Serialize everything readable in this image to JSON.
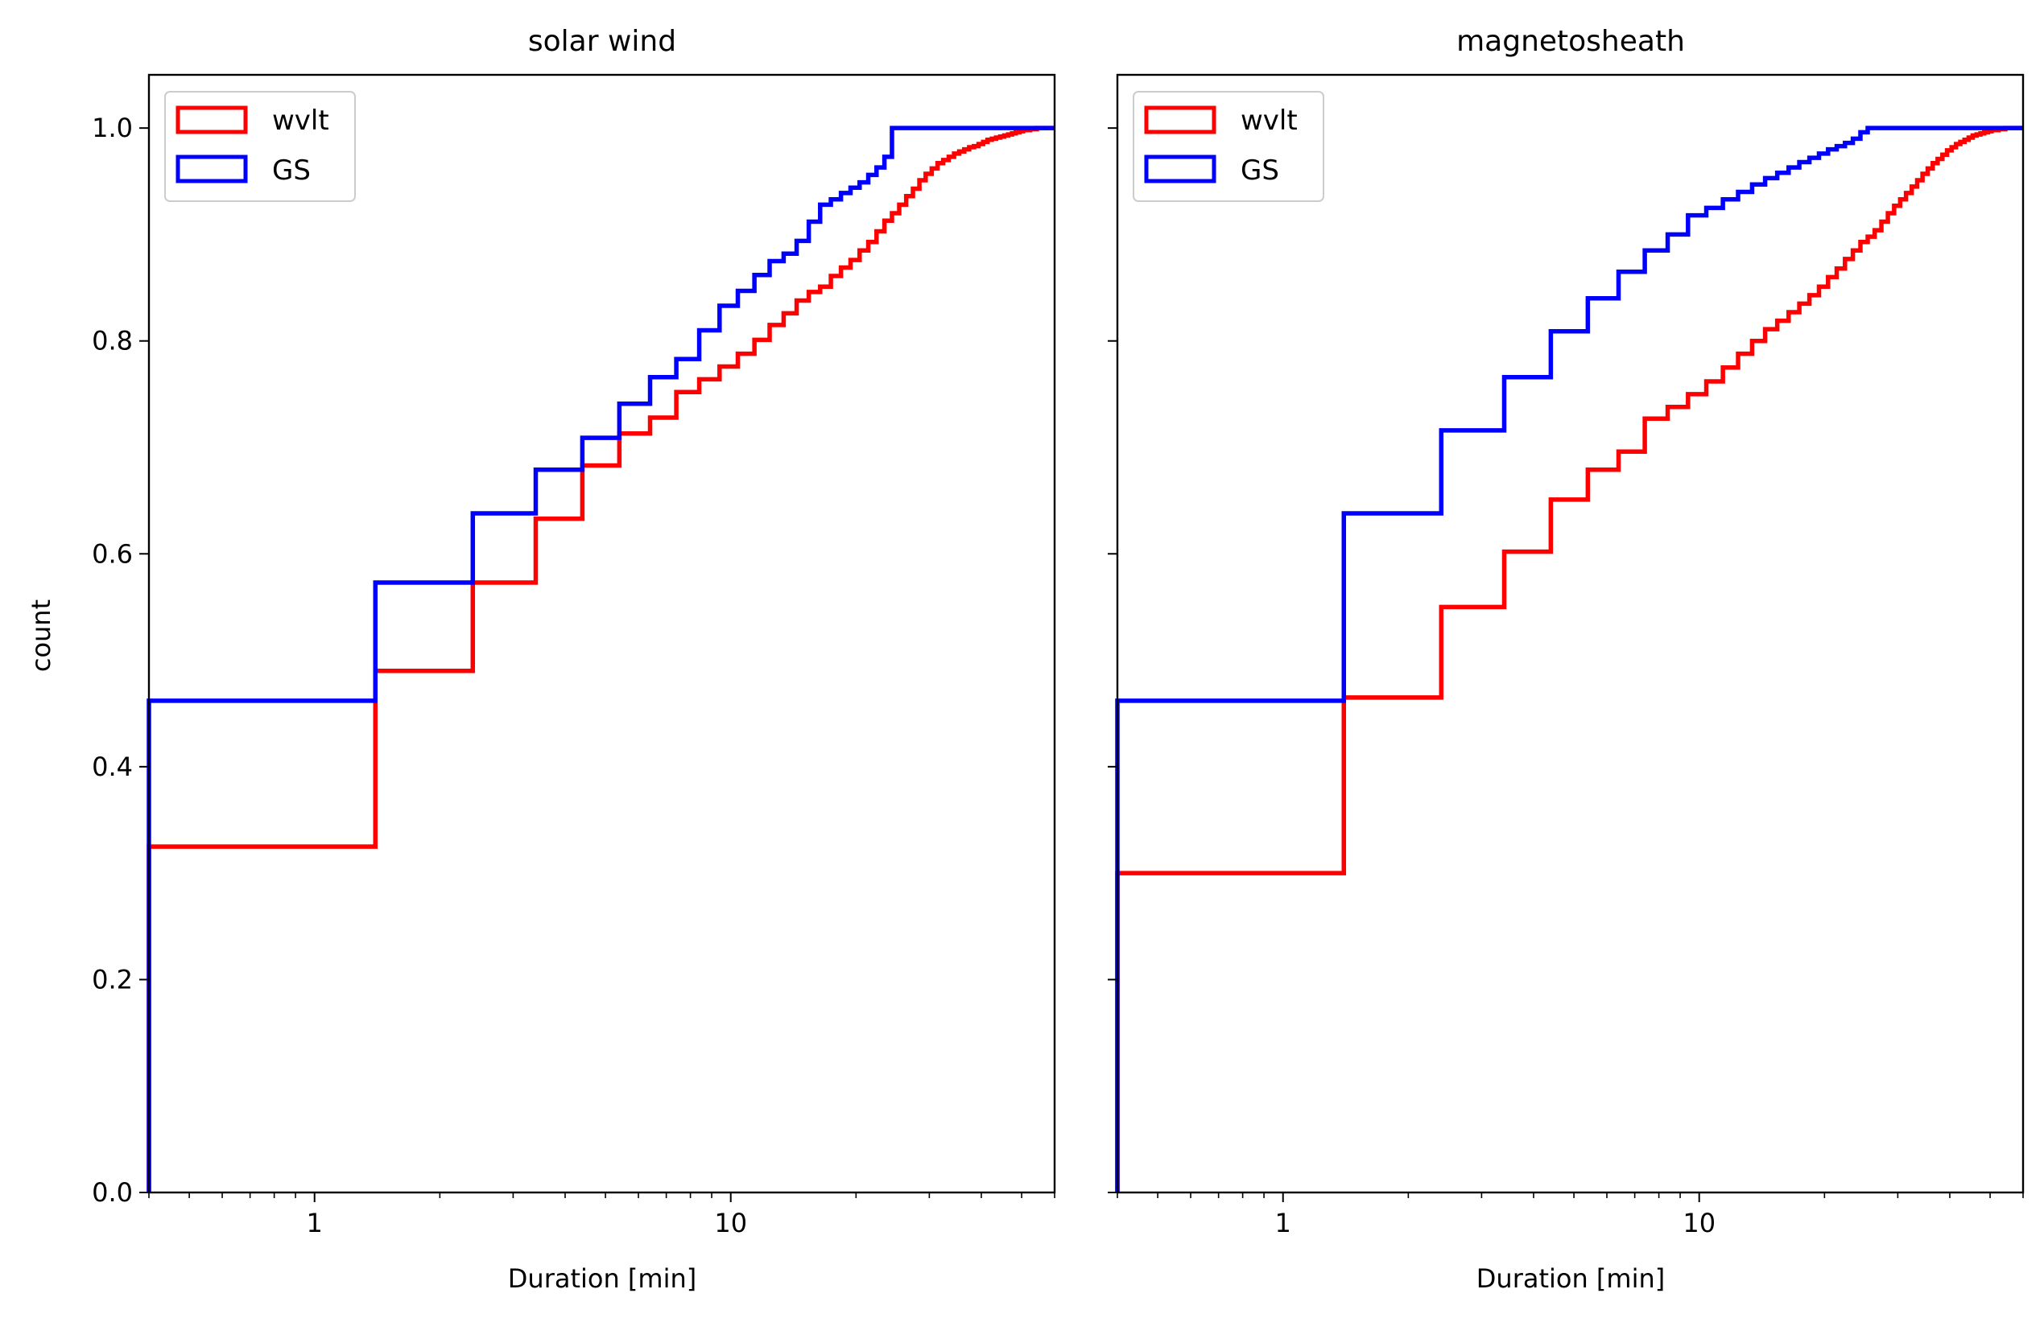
{
  "chart_data": [
    {
      "type": "step",
      "title": "solar wind",
      "xlabel": "Duration [min]",
      "ylabel": "count",
      "xscale": "log",
      "xlim": [
        0.4,
        60
      ],
      "ylim": [
        0,
        1.05
      ],
      "xticks": [
        {
          "v": 1,
          "label": "1"
        },
        {
          "v": 10,
          "label": "10"
        }
      ],
      "yticks": [
        {
          "v": 0,
          "label": "0.0"
        },
        {
          "v": 0.2,
          "label": "0.2"
        },
        {
          "v": 0.4,
          "label": "0.4"
        },
        {
          "v": 0.6,
          "label": "0.6"
        },
        {
          "v": 0.8,
          "label": "0.8"
        },
        {
          "v": 1.0,
          "label": "1.0"
        }
      ],
      "grid": false,
      "legend": "upper-left",
      "series": [
        {
          "name": "wvlt",
          "color": "#ff0000",
          "x": [
            0.4,
            1.4,
            2.4,
            3.4,
            4.4,
            5.4,
            6.4,
            7.4,
            8.4,
            9.4,
            10.4,
            11.4,
            12.4,
            13.4,
            14.4,
            15.4,
            16.4,
            17.4,
            18.4,
            19.4,
            20.4,
            21.4,
            22.4,
            23.4,
            24.4,
            25.4,
            26.4,
            27.4,
            28.4,
            29.4,
            30.4,
            31.4,
            32.4,
            33.4,
            34.4,
            35.4,
            36.4,
            37.4,
            38.4,
            39.4,
            40.4,
            41.4,
            42.4,
            43.4,
            44.4,
            45.4,
            46.4,
            47.4,
            48.4,
            49.4,
            50.4,
            51.4,
            52.4,
            53.4,
            54.4,
            55.4,
            56.4,
            57.4,
            58.4,
            59.4,
            60
          ],
          "y": [
            0.325,
            0.49,
            0.573,
            0.633,
            0.683,
            0.713,
            0.728,
            0.752,
            0.764,
            0.776,
            0.788,
            0.801,
            0.815,
            0.826,
            0.838,
            0.846,
            0.851,
            0.861,
            0.869,
            0.876,
            0.885,
            0.893,
            0.903,
            0.913,
            0.92,
            0.928,
            0.936,
            0.943,
            0.951,
            0.957,
            0.962,
            0.967,
            0.97,
            0.973,
            0.976,
            0.978,
            0.98,
            0.982,
            0.983,
            0.985,
            0.987,
            0.989,
            0.99,
            0.991,
            0.992,
            0.993,
            0.994,
            0.995,
            0.996,
            0.997,
            0.998,
            0.998,
            0.999,
            0.999,
            1.0,
            1.0,
            1.0,
            1.0,
            1.0,
            1.0,
            1.0
          ]
        },
        {
          "name": "GS",
          "color": "#0000ff",
          "x": [
            0.4,
            1.4,
            2.4,
            3.4,
            4.4,
            5.4,
            6.4,
            7.4,
            8.4,
            9.4,
            10.4,
            11.4,
            12.4,
            13.4,
            14.4,
            15.4,
            16.4,
            17.4,
            18.4,
            19.4,
            20.4,
            21.4,
            22.4,
            23.4,
            24.4,
            25.4,
            60
          ],
          "y": [
            0.462,
            0.573,
            0.638,
            0.679,
            0.709,
            0.741,
            0.766,
            0.783,
            0.81,
            0.833,
            0.847,
            0.862,
            0.875,
            0.882,
            0.894,
            0.912,
            0.928,
            0.933,
            0.939,
            0.944,
            0.949,
            0.956,
            0.963,
            0.973,
            1.0,
            1.0,
            1.0
          ]
        }
      ]
    },
    {
      "type": "step",
      "title": "magnetosheath",
      "xlabel": "Duration [min]",
      "ylabel": "",
      "xscale": "log",
      "xlim": [
        0.4,
        60
      ],
      "ylim": [
        0,
        1.05
      ],
      "xticks": [
        {
          "v": 1,
          "label": "1"
        },
        {
          "v": 10,
          "label": "10"
        }
      ],
      "yticks": [
        {
          "v": 0,
          "label": ""
        },
        {
          "v": 0.2,
          "label": ""
        },
        {
          "v": 0.4,
          "label": ""
        },
        {
          "v": 0.6,
          "label": ""
        },
        {
          "v": 0.8,
          "label": ""
        },
        {
          "v": 1.0,
          "label": ""
        }
      ],
      "grid": false,
      "legend": "upper-left",
      "series": [
        {
          "name": "wvlt",
          "color": "#ff0000",
          "x": [
            0.4,
            1.4,
            2.4,
            3.4,
            4.4,
            5.4,
            6.4,
            7.4,
            8.4,
            9.4,
            10.4,
            11.4,
            12.4,
            13.4,
            14.4,
            15.4,
            16.4,
            17.4,
            18.4,
            19.4,
            20.4,
            21.4,
            22.4,
            23.4,
            24.4,
            25.4,
            26.4,
            27.4,
            28.4,
            29.4,
            30.4,
            31.4,
            32.4,
            33.4,
            34.4,
            35.4,
            36.4,
            37.4,
            38.4,
            39.4,
            40.4,
            41.4,
            42.4,
            43.4,
            44.4,
            45.4,
            46.4,
            47.4,
            48.4,
            49.4,
            50.4,
            51.4,
            52.4,
            53.4,
            54.4,
            55.4,
            56.4,
            57.4,
            58.4,
            59.4,
            60
          ],
          "y": [
            0.3,
            0.465,
            0.55,
            0.602,
            0.651,
            0.679,
            0.696,
            0.727,
            0.738,
            0.75,
            0.762,
            0.775,
            0.788,
            0.8,
            0.811,
            0.819,
            0.827,
            0.835,
            0.843,
            0.851,
            0.86,
            0.868,
            0.877,
            0.885,
            0.893,
            0.898,
            0.904,
            0.912,
            0.92,
            0.927,
            0.933,
            0.939,
            0.945,
            0.951,
            0.957,
            0.962,
            0.967,
            0.971,
            0.975,
            0.979,
            0.982,
            0.985,
            0.987,
            0.989,
            0.991,
            0.993,
            0.994,
            0.995,
            0.996,
            0.997,
            0.998,
            0.998,
            0.999,
            0.999,
            1.0,
            1.0,
            1.0,
            1.0,
            1.0,
            1.0,
            1.0
          ]
        },
        {
          "name": "GS",
          "color": "#0000ff",
          "x": [
            0.4,
            1.4,
            2.4,
            3.4,
            4.4,
            5.4,
            6.4,
            7.4,
            8.4,
            9.4,
            10.4,
            11.4,
            12.4,
            13.4,
            14.4,
            15.4,
            16.4,
            17.4,
            18.4,
            19.4,
            20.4,
            21.4,
            22.4,
            23.4,
            24.4,
            25.4,
            60
          ],
          "y": [
            0.462,
            0.638,
            0.716,
            0.766,
            0.809,
            0.84,
            0.865,
            0.885,
            0.9,
            0.918,
            0.925,
            0.933,
            0.94,
            0.947,
            0.953,
            0.958,
            0.963,
            0.968,
            0.972,
            0.976,
            0.98,
            0.983,
            0.986,
            0.99,
            0.996,
            1.0,
            1.0
          ]
        }
      ]
    }
  ]
}
